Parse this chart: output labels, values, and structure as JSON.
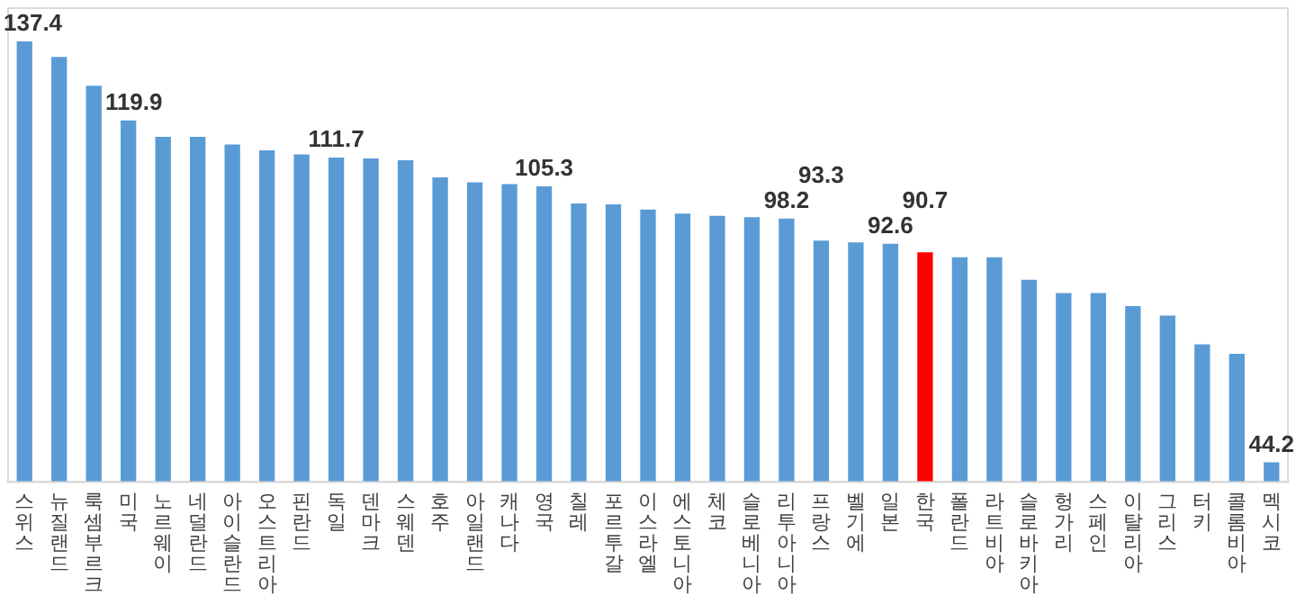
{
  "chart_data": {
    "type": "bar",
    "categories": [
      "스위스",
      "뉴질랜드",
      "룩셈부르크",
      "미국",
      "노르웨이",
      "네덜란드",
      "아이슬란드",
      "오스트리아",
      "핀란드",
      "독일",
      "덴마크",
      "스웨덴",
      "호주",
      "아일랜드",
      "캐나다",
      "영국",
      "칠레",
      "포르투갈",
      "이스라엘",
      "에스토니아",
      "체코",
      "슬로베니아",
      "리투아니아",
      "프랑스",
      "벨기에",
      "일본",
      "한국",
      "폴란드",
      "라트비아",
      "슬로바키아",
      "헝가리",
      "스페인",
      "이탈리아",
      "그리스",
      "터키",
      "콜롬비아",
      "멕시코"
    ],
    "values": [
      137.4,
      134.0,
      127.6,
      119.9,
      116.3,
      116.3,
      114.6,
      113.3,
      112.4,
      111.7,
      111.5,
      111.1,
      107.3,
      106.2,
      105.8,
      105.3,
      101.5,
      101.3,
      100.2,
      99.3,
      98.8,
      98.5,
      98.2,
      93.3,
      92.9,
      92.6,
      90.7,
      89.6,
      89.6,
      84.6,
      81.7,
      81.7,
      78.8,
      76.7,
      70.3,
      68.2,
      44.2
    ],
    "colors": [
      "#5b9bd5",
      "#5b9bd5",
      "#5b9bd5",
      "#5b9bd5",
      "#5b9bd5",
      "#5b9bd5",
      "#5b9bd5",
      "#5b9bd5",
      "#5b9bd5",
      "#5b9bd5",
      "#5b9bd5",
      "#5b9bd5",
      "#5b9bd5",
      "#5b9bd5",
      "#5b9bd5",
      "#5b9bd5",
      "#5b9bd5",
      "#5b9bd5",
      "#5b9bd5",
      "#5b9bd5",
      "#5b9bd5",
      "#5b9bd5",
      "#5b9bd5",
      "#5b9bd5",
      "#5b9bd5",
      "#5b9bd5",
      "#ff0000",
      "#5b9bd5",
      "#5b9bd5",
      "#5b9bd5",
      "#5b9bd5",
      "#5b9bd5",
      "#5b9bd5",
      "#5b9bd5",
      "#5b9bd5",
      "#5b9bd5",
      "#5b9bd5"
    ],
    "value_labels": [
      "137.4",
      null,
      null,
      "119.9",
      null,
      null,
      null,
      null,
      null,
      "111.7",
      null,
      null,
      null,
      null,
      null,
      "105.3",
      null,
      null,
      null,
      null,
      null,
      null,
      "98.2",
      "93.3",
      null,
      "92.6",
      "90.7",
      null,
      null,
      null,
      null,
      null,
      null,
      null,
      null,
      null,
      "44.2"
    ],
    "ylim": [
      40,
      145
    ],
    "grid": false,
    "legend": false,
    "tick_labels": "x"
  }
}
